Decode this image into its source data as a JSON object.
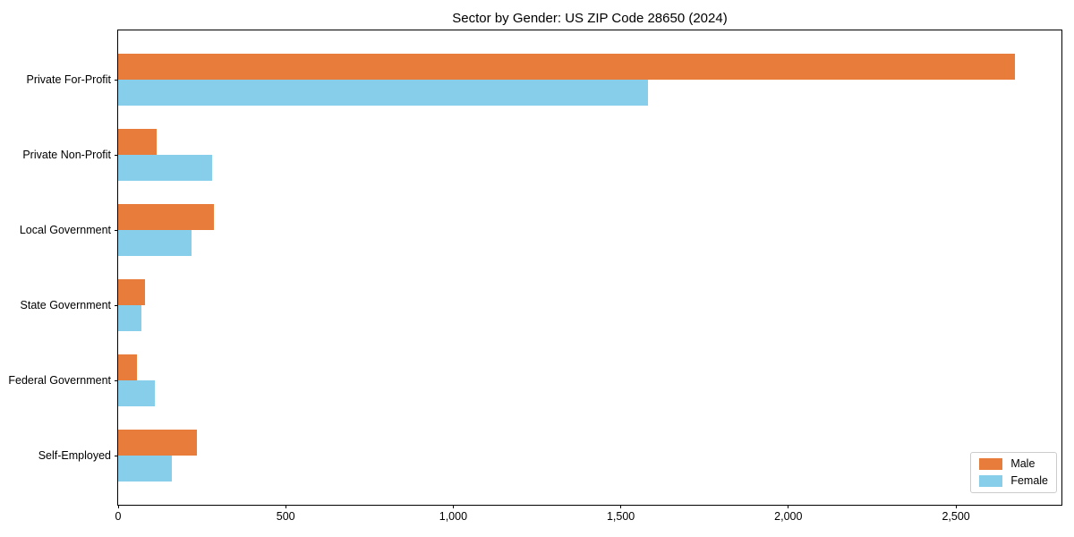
{
  "chart_data": {
    "type": "bar",
    "orientation": "horizontal",
    "title": "Sector by Gender: US ZIP Code 28650 (2024)",
    "categories": [
      "Private For-Profit",
      "Private Non-Profit",
      "Local Government",
      "State Government",
      "Federal Government",
      "Self-Employed"
    ],
    "series": [
      {
        "name": "Male",
        "color": "#E87D3B",
        "values": [
          2675,
          115,
          285,
          80,
          55,
          235
        ]
      },
      {
        "name": "Female",
        "color": "#87CEEB",
        "values": [
          1580,
          280,
          220,
          70,
          110,
          160
        ]
      }
    ],
    "xlabel": "",
    "ylabel": "",
    "xlim": [
      0,
      2815
    ],
    "xticks": [
      0,
      500,
      1000,
      1500,
      2000,
      2500
    ],
    "xtick_labels": [
      "0",
      "500",
      "1,000",
      "1,500",
      "2,000",
      "2,500"
    ],
    "grid": false,
    "legend_position": "lower right",
    "background_color": "#ffffff",
    "spine_color": "#000000",
    "text_color": "#000000"
  }
}
